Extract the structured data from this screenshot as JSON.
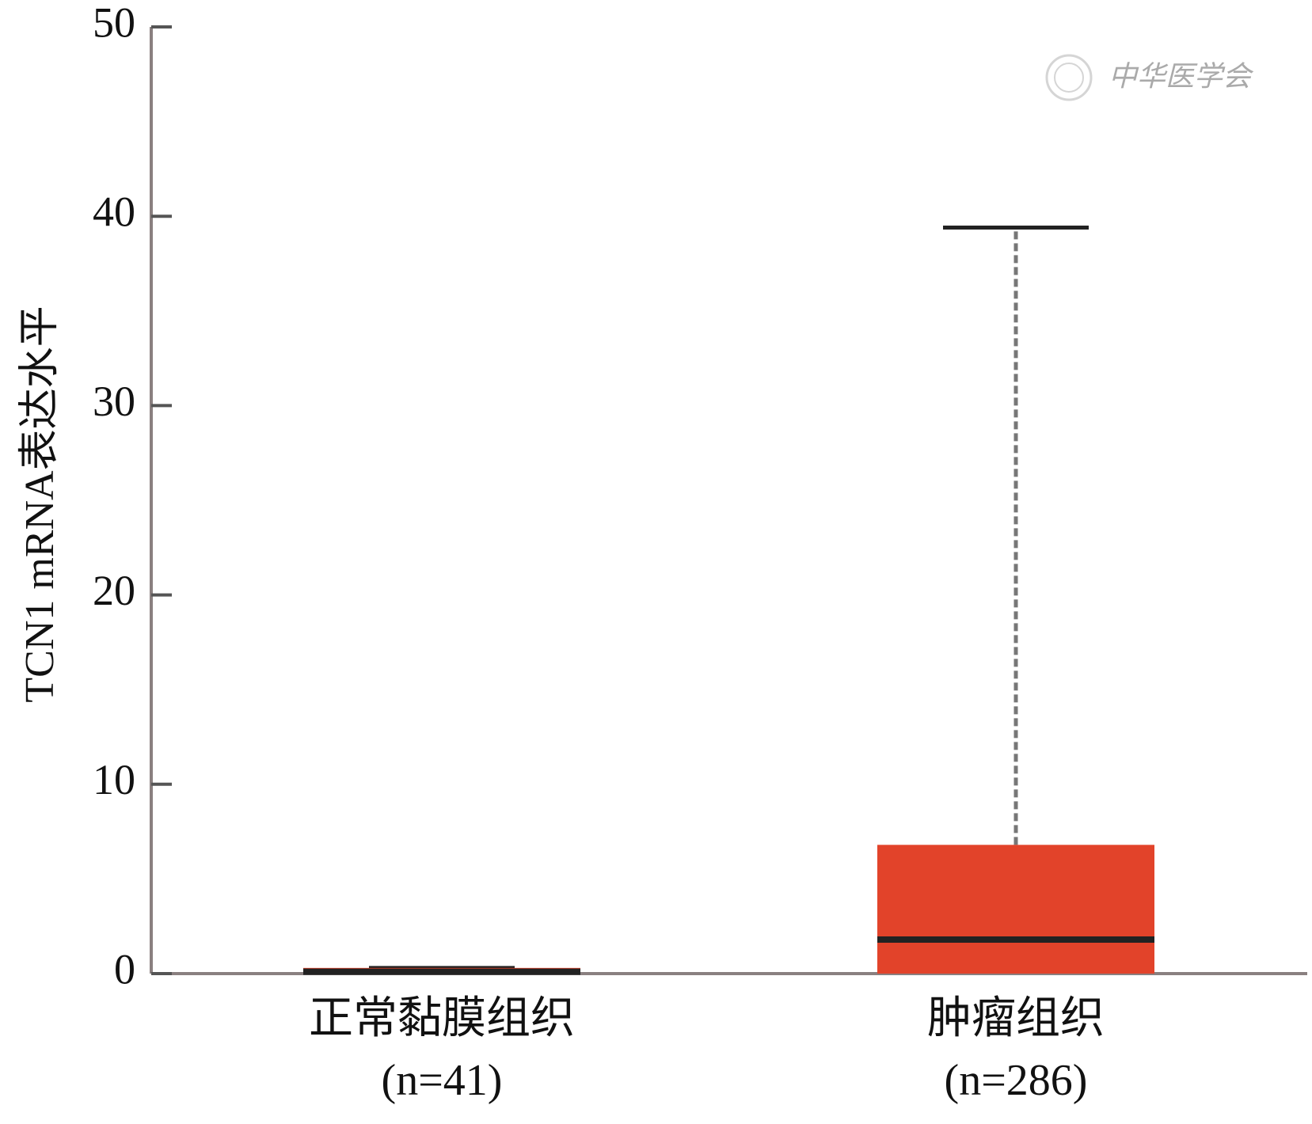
{
  "chart_data": {
    "type": "box",
    "y_label": "TCN1 mRNA表达水平",
    "categories": [
      "正常黏膜组织",
      "肿瘤组织"
    ],
    "category_notes": [
      "(n=41)",
      "(n=286)"
    ],
    "boxes": [
      {
        "min": 0,
        "q1": 0,
        "median": 0.1,
        "q3": 0.3,
        "max": 0.3
      },
      {
        "min": 0,
        "q1": 0,
        "median": 1.8,
        "q3": 6.8,
        "max": 39.4
      }
    ],
    "color": "#e2432a",
    "ylim": [
      0,
      50
    ],
    "yticks": [
      0,
      10,
      20,
      30,
      40,
      50
    ],
    "watermark": "中华医学会"
  }
}
